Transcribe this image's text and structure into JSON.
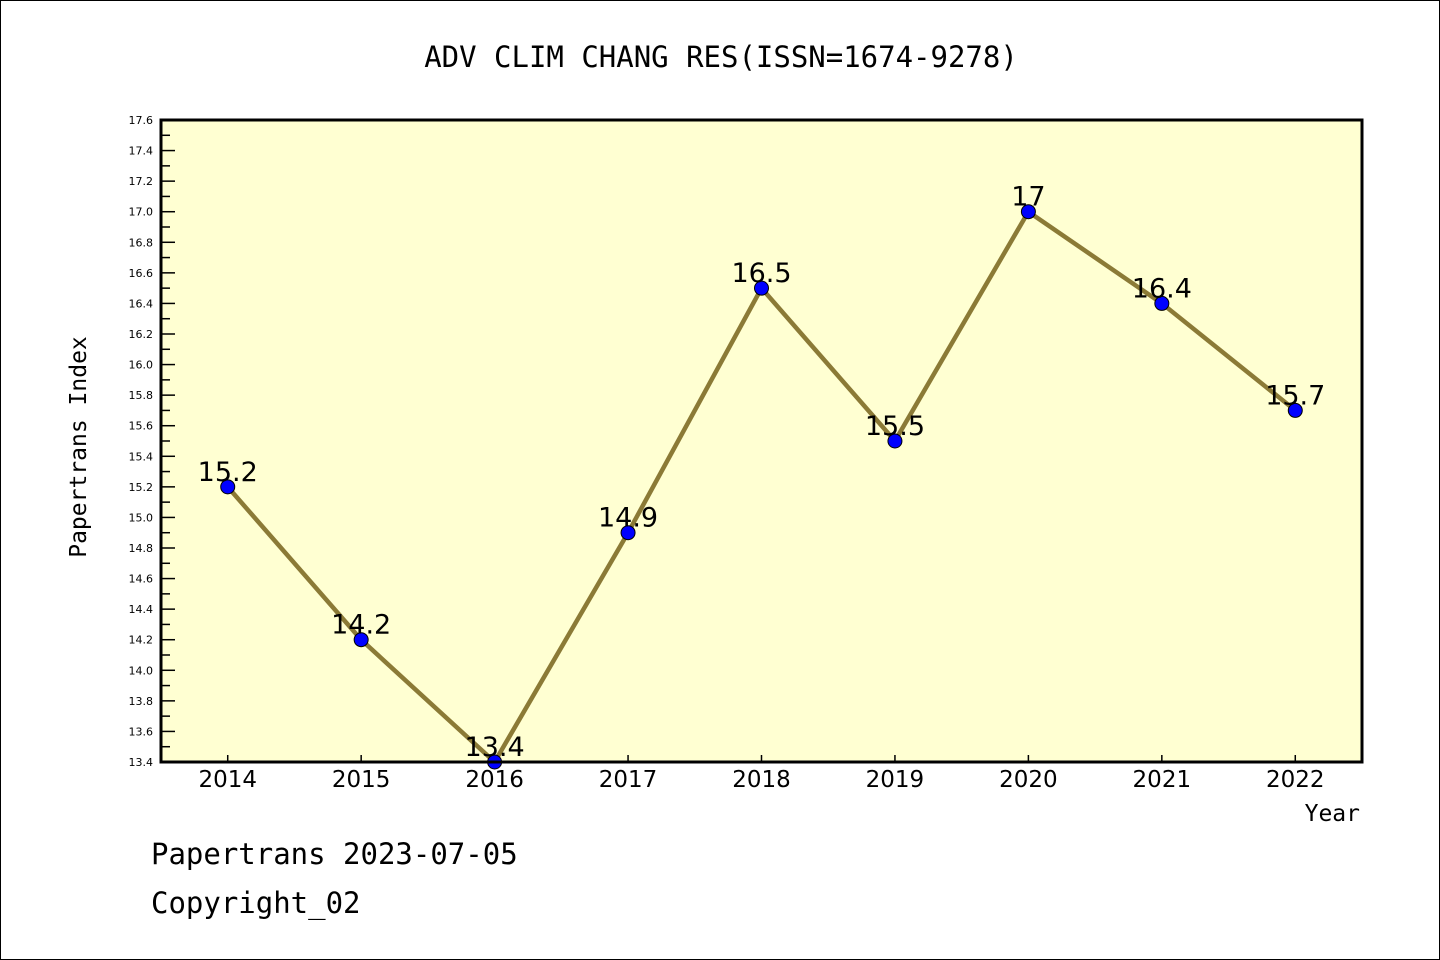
{
  "chart_data": {
    "type": "line",
    "title": "ADV CLIM CHANG RES(ISSN=1674-9278)",
    "xlabel": "Year",
    "ylabel": "Papertrans Index",
    "categories": [
      "2014",
      "2015",
      "2016",
      "2017",
      "2018",
      "2019",
      "2020",
      "2021",
      "2022"
    ],
    "series": [
      {
        "name": "Papertrans Index",
        "values": [
          15.2,
          14.2,
          13.4,
          14.9,
          16.5,
          15.5,
          17,
          16.4,
          15.7
        ]
      }
    ],
    "data_labels": [
      "15.2",
      "14.2",
      "13.4",
      "14.9",
      "16.5",
      "15.5",
      "17",
      "16.4",
      "15.7"
    ],
    "ylim": [
      13.4,
      17.6
    ],
    "yticks": [
      "13.4",
      "13.6",
      "13.8",
      "14.0",
      "14.2",
      "14.4",
      "14.6",
      "14.8",
      "15.0",
      "15.2",
      "15.4",
      "15.6",
      "15.8",
      "16.0",
      "16.2",
      "16.4",
      "16.6",
      "16.8",
      "17.0",
      "17.2",
      "17.4",
      "17.6"
    ],
    "grid": false,
    "colors": {
      "plot_bg": "#ffffd2",
      "line": "#8b7a36",
      "marker": "#0000ff"
    }
  },
  "footer": {
    "line1": "Papertrans 2023-07-05",
    "line2": "Copyright_02"
  }
}
